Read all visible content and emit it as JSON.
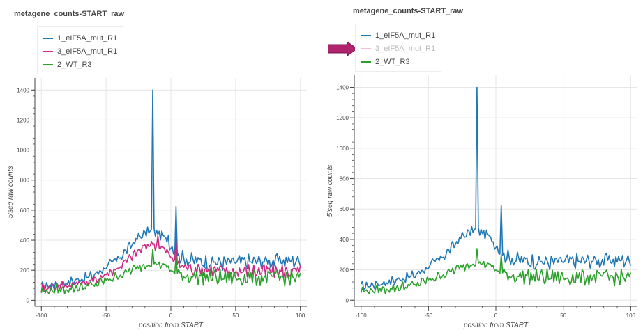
{
  "colors": {
    "series1": "#1f77b4",
    "series2": "#cc2a83",
    "series3": "#2ca02c",
    "arrow": "#b0246e"
  },
  "arrow_icon": "right-arrow-icon",
  "chart_data": [
    {
      "type": "line",
      "title": "metagene_counts-START_raw",
      "xlabel": "position from START",
      "ylabel": "5'seq raw counts",
      "xlim": [
        -105,
        105
      ],
      "ylim": [
        -40,
        1480
      ],
      "xticks": [
        -100,
        -50,
        0,
        50,
        100
      ],
      "yticks": [
        0,
        200,
        400,
        600,
        800,
        1000,
        1200,
        1400
      ],
      "grid": true,
      "legend_position": "top-left",
      "series": [
        {
          "name": "1_eIF5A_mut_R1",
          "color": "#1f77b4",
          "visible": true,
          "baseline": [
            [
              -100,
              90
            ],
            [
              -80,
              120
            ],
            [
              -60,
              165
            ],
            [
              -40,
              280
            ],
            [
              -25,
              420
            ],
            [
              -15,
              470
            ],
            [
              -5,
              420
            ],
            [
              0,
              360
            ],
            [
              5,
              300
            ],
            [
              15,
              265
            ],
            [
              40,
              250
            ],
            [
              70,
              260
            ],
            [
              100,
              265
            ]
          ],
          "spikes": [
            {
              "x": -14,
              "y": 1400
            },
            {
              "x": 4,
              "y": 625
            },
            {
              "x": -2,
              "y": 430
            }
          ]
        },
        {
          "name": "3_eIF5A_mut_R1",
          "color": "#cc2a83",
          "visible": true,
          "baseline": [
            [
              -100,
              80
            ],
            [
              -80,
              100
            ],
            [
              -60,
              130
            ],
            [
              -40,
              220
            ],
            [
              -25,
              330
            ],
            [
              -15,
              380
            ],
            [
              -5,
              340
            ],
            [
              0,
              290
            ],
            [
              5,
              240
            ],
            [
              15,
              215
            ],
            [
              40,
              195
            ],
            [
              70,
              195
            ],
            [
              100,
              190
            ]
          ],
          "spikes": [
            {
              "x": -10,
              "y": 430
            },
            {
              "x": 4,
              "y": 400
            }
          ]
        },
        {
          "name": "2_WT_R3",
          "color": "#2ca02c",
          "visible": true,
          "baseline": [
            [
              -100,
              60
            ],
            [
              -80,
              75
            ],
            [
              -60,
              100
            ],
            [
              -40,
              165
            ],
            [
              -25,
              220
            ],
            [
              -15,
              255
            ],
            [
              -5,
              230
            ],
            [
              0,
              200
            ],
            [
              5,
              175
            ],
            [
              15,
              160
            ],
            [
              40,
              150
            ],
            [
              70,
              150
            ],
            [
              100,
              150
            ]
          ],
          "spikes": [
            {
              "x": -14,
              "y": 340
            },
            {
              "x": 4,
              "y": 300
            }
          ]
        }
      ]
    },
    {
      "type": "line",
      "title": "metagene_counts-START_raw",
      "xlabel": "position from START",
      "ylabel": "5'seq raw counts",
      "xlim": [
        -105,
        105
      ],
      "ylim": [
        -40,
        1480
      ],
      "xticks": [
        -100,
        -50,
        0,
        50,
        100
      ],
      "yticks": [
        0,
        200,
        400,
        600,
        800,
        1000,
        1200,
        1400
      ],
      "grid": true,
      "legend_position": "top-left",
      "series": [
        {
          "name": "1_eIF5A_mut_R1",
          "color": "#1f77b4",
          "visible": true,
          "baseline": [
            [
              -100,
              90
            ],
            [
              -80,
              120
            ],
            [
              -60,
              165
            ],
            [
              -40,
              280
            ],
            [
              -25,
              420
            ],
            [
              -15,
              470
            ],
            [
              -5,
              420
            ],
            [
              0,
              360
            ],
            [
              5,
              300
            ],
            [
              15,
              265
            ],
            [
              40,
              250
            ],
            [
              70,
              260
            ],
            [
              100,
              265
            ]
          ],
          "spikes": [
            {
              "x": -14,
              "y": 1400
            },
            {
              "x": 4,
              "y": 625
            }
          ]
        },
        {
          "name": "3_eIF5A_mut_R1",
          "color": "#cc2a83",
          "visible": false,
          "baseline": [],
          "spikes": []
        },
        {
          "name": "2_WT_R3",
          "color": "#2ca02c",
          "visible": true,
          "baseline": [
            [
              -100,
              60
            ],
            [
              -80,
              75
            ],
            [
              -60,
              100
            ],
            [
              -40,
              165
            ],
            [
              -25,
              220
            ],
            [
              -15,
              255
            ],
            [
              -5,
              230
            ],
            [
              0,
              200
            ],
            [
              5,
              175
            ],
            [
              15,
              160
            ],
            [
              40,
              150
            ],
            [
              70,
              150
            ],
            [
              100,
              150
            ]
          ],
          "spikes": [
            {
              "x": -14,
              "y": 340
            },
            {
              "x": 4,
              "y": 300
            }
          ]
        }
      ]
    }
  ]
}
